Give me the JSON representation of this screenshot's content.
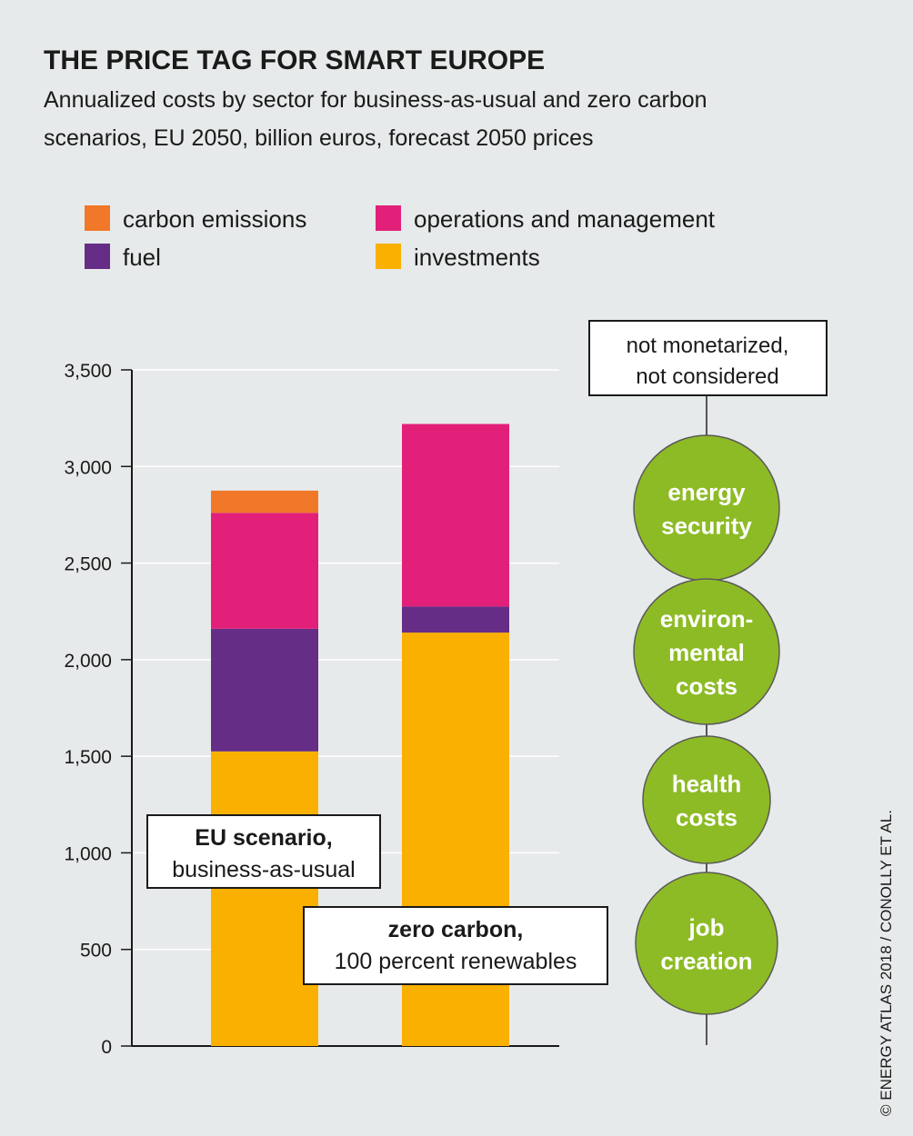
{
  "chart_data": {
    "type": "stacked_bar",
    "title": "THE PRICE TAG FOR SMART EUROPE",
    "subtitle": [
      "Annualized costs by sector for business-as-usual and zero carbon",
      "scenarios, EU 2050, billion euros, forecast 2050 prices"
    ],
    "categories": [
      "EU scenario,",
      "zero carbon,"
    ],
    "category_notes": [
      "business-as-usual",
      "100 percent renewables"
    ],
    "series": [
      {
        "name": "carbon emissions",
        "color": "#f07828",
        "values": [
          115,
          0
        ]
      },
      {
        "name": "operations and management",
        "color": "#e2207a",
        "values": [
          600,
          945
        ]
      },
      {
        "name": "fuel",
        "color": "#662d87",
        "values": [
          635,
          135
        ]
      },
      {
        "name": "investments",
        "color": "#f9b000",
        "values": [
          1525,
          2140
        ]
      }
    ],
    "ylim": [
      0,
      3500
    ],
    "yticks": [
      0,
      500,
      {
        "value": 1000,
        "label": "1,000"
      },
      {
        "value": 1500,
        "label": "1,500"
      },
      {
        "value": 2000,
        "label": "2,000"
      },
      {
        "value": 2500,
        "label": "2,500"
      },
      {
        "value": 3000,
        "label": "3,000"
      },
      {
        "value": 3500,
        "label": "3,500"
      }
    ],
    "grid": true,
    "side_panel": {
      "title": [
        "not monetarized,",
        "not considered"
      ],
      "items": [
        [
          "energy",
          "security"
        ],
        [
          "environ-",
          "mental",
          "costs"
        ],
        [
          "health",
          "costs"
        ],
        [
          "job",
          "creation"
        ]
      ]
    },
    "credit": "© ENERGY ATLAS 2018 / CONOLLY ET AL."
  }
}
